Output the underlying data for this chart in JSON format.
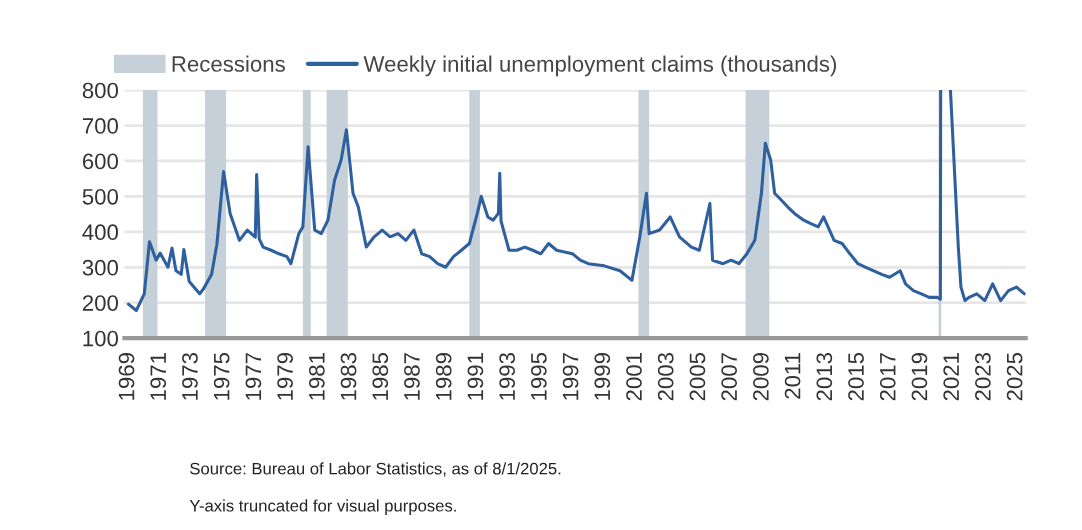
{
  "chart_data": {
    "type": "line",
    "annotations": [
      "Source: Bureau of Labor Statistics, as of 8/1/2025.",
      "Y-axis truncated for visual purposes."
    ],
    "x": [
      "1969-01",
      "1969-07",
      "1970-01",
      "1970-05",
      "1970-10",
      "1971-01",
      "1971-07",
      "1971-10",
      "1972-01",
      "1972-05",
      "1972-07",
      "1972-11",
      "1973-07",
      "1973-10",
      "1974-04",
      "1974-08",
      "1975-01",
      "1975-06",
      "1976-01",
      "1976-07",
      "1977-01",
      "1977-02",
      "1977-04",
      "1977-07",
      "1978-01",
      "1978-07",
      "1979-01",
      "1979-04",
      "1979-10",
      "1980-01",
      "1980-05",
      "1980-10",
      "1981-03",
      "1981-08",
      "1982-01",
      "1982-06",
      "1982-10",
      "1983-03",
      "1983-07",
      "1984-01",
      "1984-07",
      "1985-01",
      "1985-07",
      "1986-01",
      "1986-07",
      "1987-01",
      "1987-07",
      "1988-01",
      "1988-07",
      "1989-01",
      "1989-07",
      "1990-01",
      "1990-07",
      "1991-01",
      "1991-04",
      "1991-09",
      "1992-01",
      "1992-05",
      "1992-06",
      "1992-07",
      "1993-01",
      "1993-07",
      "1994-01",
      "1994-07",
      "1995-01",
      "1995-07",
      "1996-01",
      "1997-01",
      "1997-07",
      "1998-01",
      "1999-01",
      "2000-01",
      "2000-10",
      "2001-04",
      "2001-09",
      "2001-11",
      "2002-07",
      "2003-03",
      "2003-10",
      "2004-07",
      "2005-01",
      "2005-09",
      "2005-11",
      "2006-07",
      "2007-01",
      "2007-07",
      "2008-01",
      "2008-07",
      "2008-12",
      "2009-03",
      "2009-07",
      "2009-10",
      "2010-03",
      "2010-08",
      "2011-01",
      "2011-08",
      "2012-01",
      "2012-07",
      "2012-11",
      "2013-07",
      "2014-01",
      "2014-07",
      "2015-01",
      "2015-07",
      "2016-01",
      "2016-07",
      "2017-01",
      "2017-09",
      "2018-01",
      "2018-07",
      "2019-01",
      "2019-07",
      "2020-01",
      "2020-03-14",
      "2020-03-21",
      "2020-07",
      "2020-11",
      "2021-05",
      "2021-07",
      "2021-10",
      "2022-01",
      "2022-07",
      "2023-01",
      "2023-07",
      "2024-01",
      "2024-07",
      "2025-01",
      "2025-07"
    ],
    "series": [
      {
        "name": "Weekly initial unemployment claims (thousands)",
        "color": "#2e5f9e",
        "values": [
          196,
          178,
          225,
          372,
          320,
          340,
          300,
          354,
          290,
          280,
          350,
          260,
          225,
          240,
          280,
          365,
          570,
          452,
          376,
          405,
          385,
          562,
          380,
          357,
          348,
          338,
          330,
          310,
          395,
          414,
          640,
          405,
          395,
          433,
          546,
          603,
          688,
          509,
          470,
          357,
          386,
          405,
          386,
          395,
          376,
          405,
          338,
          330,
          310,
          300,
          330,
          348,
          367,
          452,
          500,
          442,
          433,
          452,
          565,
          430,
          348,
          348,
          357,
          348,
          338,
          367,
          348,
          338,
          320,
          310,
          304,
          290,
          263,
          386,
          509,
          395,
          405,
          442,
          386,
          357,
          348,
          480,
          320,
          310,
          320,
          310,
          338,
          376,
          509,
          650,
          603,
          509,
          490,
          470,
          452,
          433,
          424,
          414,
          442,
          376,
          367,
          338,
          310,
          300,
          290,
          280,
          272,
          290,
          253,
          234,
          225,
          215,
          215,
          210,
          800,
          null,
          800,
          357,
          244,
          206,
          215,
          225,
          206,
          253,
          206,
          234,
          244,
          225
        ]
      }
    ],
    "bands": [
      {
        "axis": "x",
        "from": "1969-12",
        "to": "1970-11",
        "label": "Recessions",
        "color": "#c5d0d8"
      },
      {
        "axis": "x",
        "from": "1973-11",
        "to": "1975-03",
        "color": "#c5d0d8"
      },
      {
        "axis": "x",
        "from": "1980-01",
        "to": "1980-07",
        "color": "#c5d0d8"
      },
      {
        "axis": "x",
        "from": "1981-07",
        "to": "1982-11",
        "color": "#c5d0d8"
      },
      {
        "axis": "x",
        "from": "1990-07",
        "to": "1991-03",
        "color": "#c5d0d8"
      },
      {
        "axis": "x",
        "from": "2001-03",
        "to": "2001-11",
        "color": "#c5d0d8"
      },
      {
        "axis": "x",
        "from": "2007-12",
        "to": "2009-06",
        "color": "#c5d0d8"
      },
      {
        "axis": "x",
        "from": "2020-02",
        "to": "2020-04",
        "color": "#c5d0d8"
      }
    ],
    "xlim": [
      "1968-10",
      "2025-08"
    ],
    "xticks": [
      "1969",
      "1971",
      "1973",
      "1975",
      "1977",
      "1979",
      "1981",
      "1983",
      "1985",
      "1987",
      "1989",
      "1991",
      "1993",
      "1995",
      "1997",
      "1999",
      "2001",
      "2003",
      "2005",
      "2007",
      "2009",
      "2011",
      "2013",
      "2015",
      "2017",
      "2019",
      "2021",
      "2023",
      "2025"
    ],
    "ylim": [
      100,
      800
    ],
    "yticks": [
      100,
      200,
      300,
      400,
      500,
      600,
      700,
      800
    ],
    "grid": "y",
    "legend": "top left",
    "marker": "none",
    "line_style": "solid"
  }
}
